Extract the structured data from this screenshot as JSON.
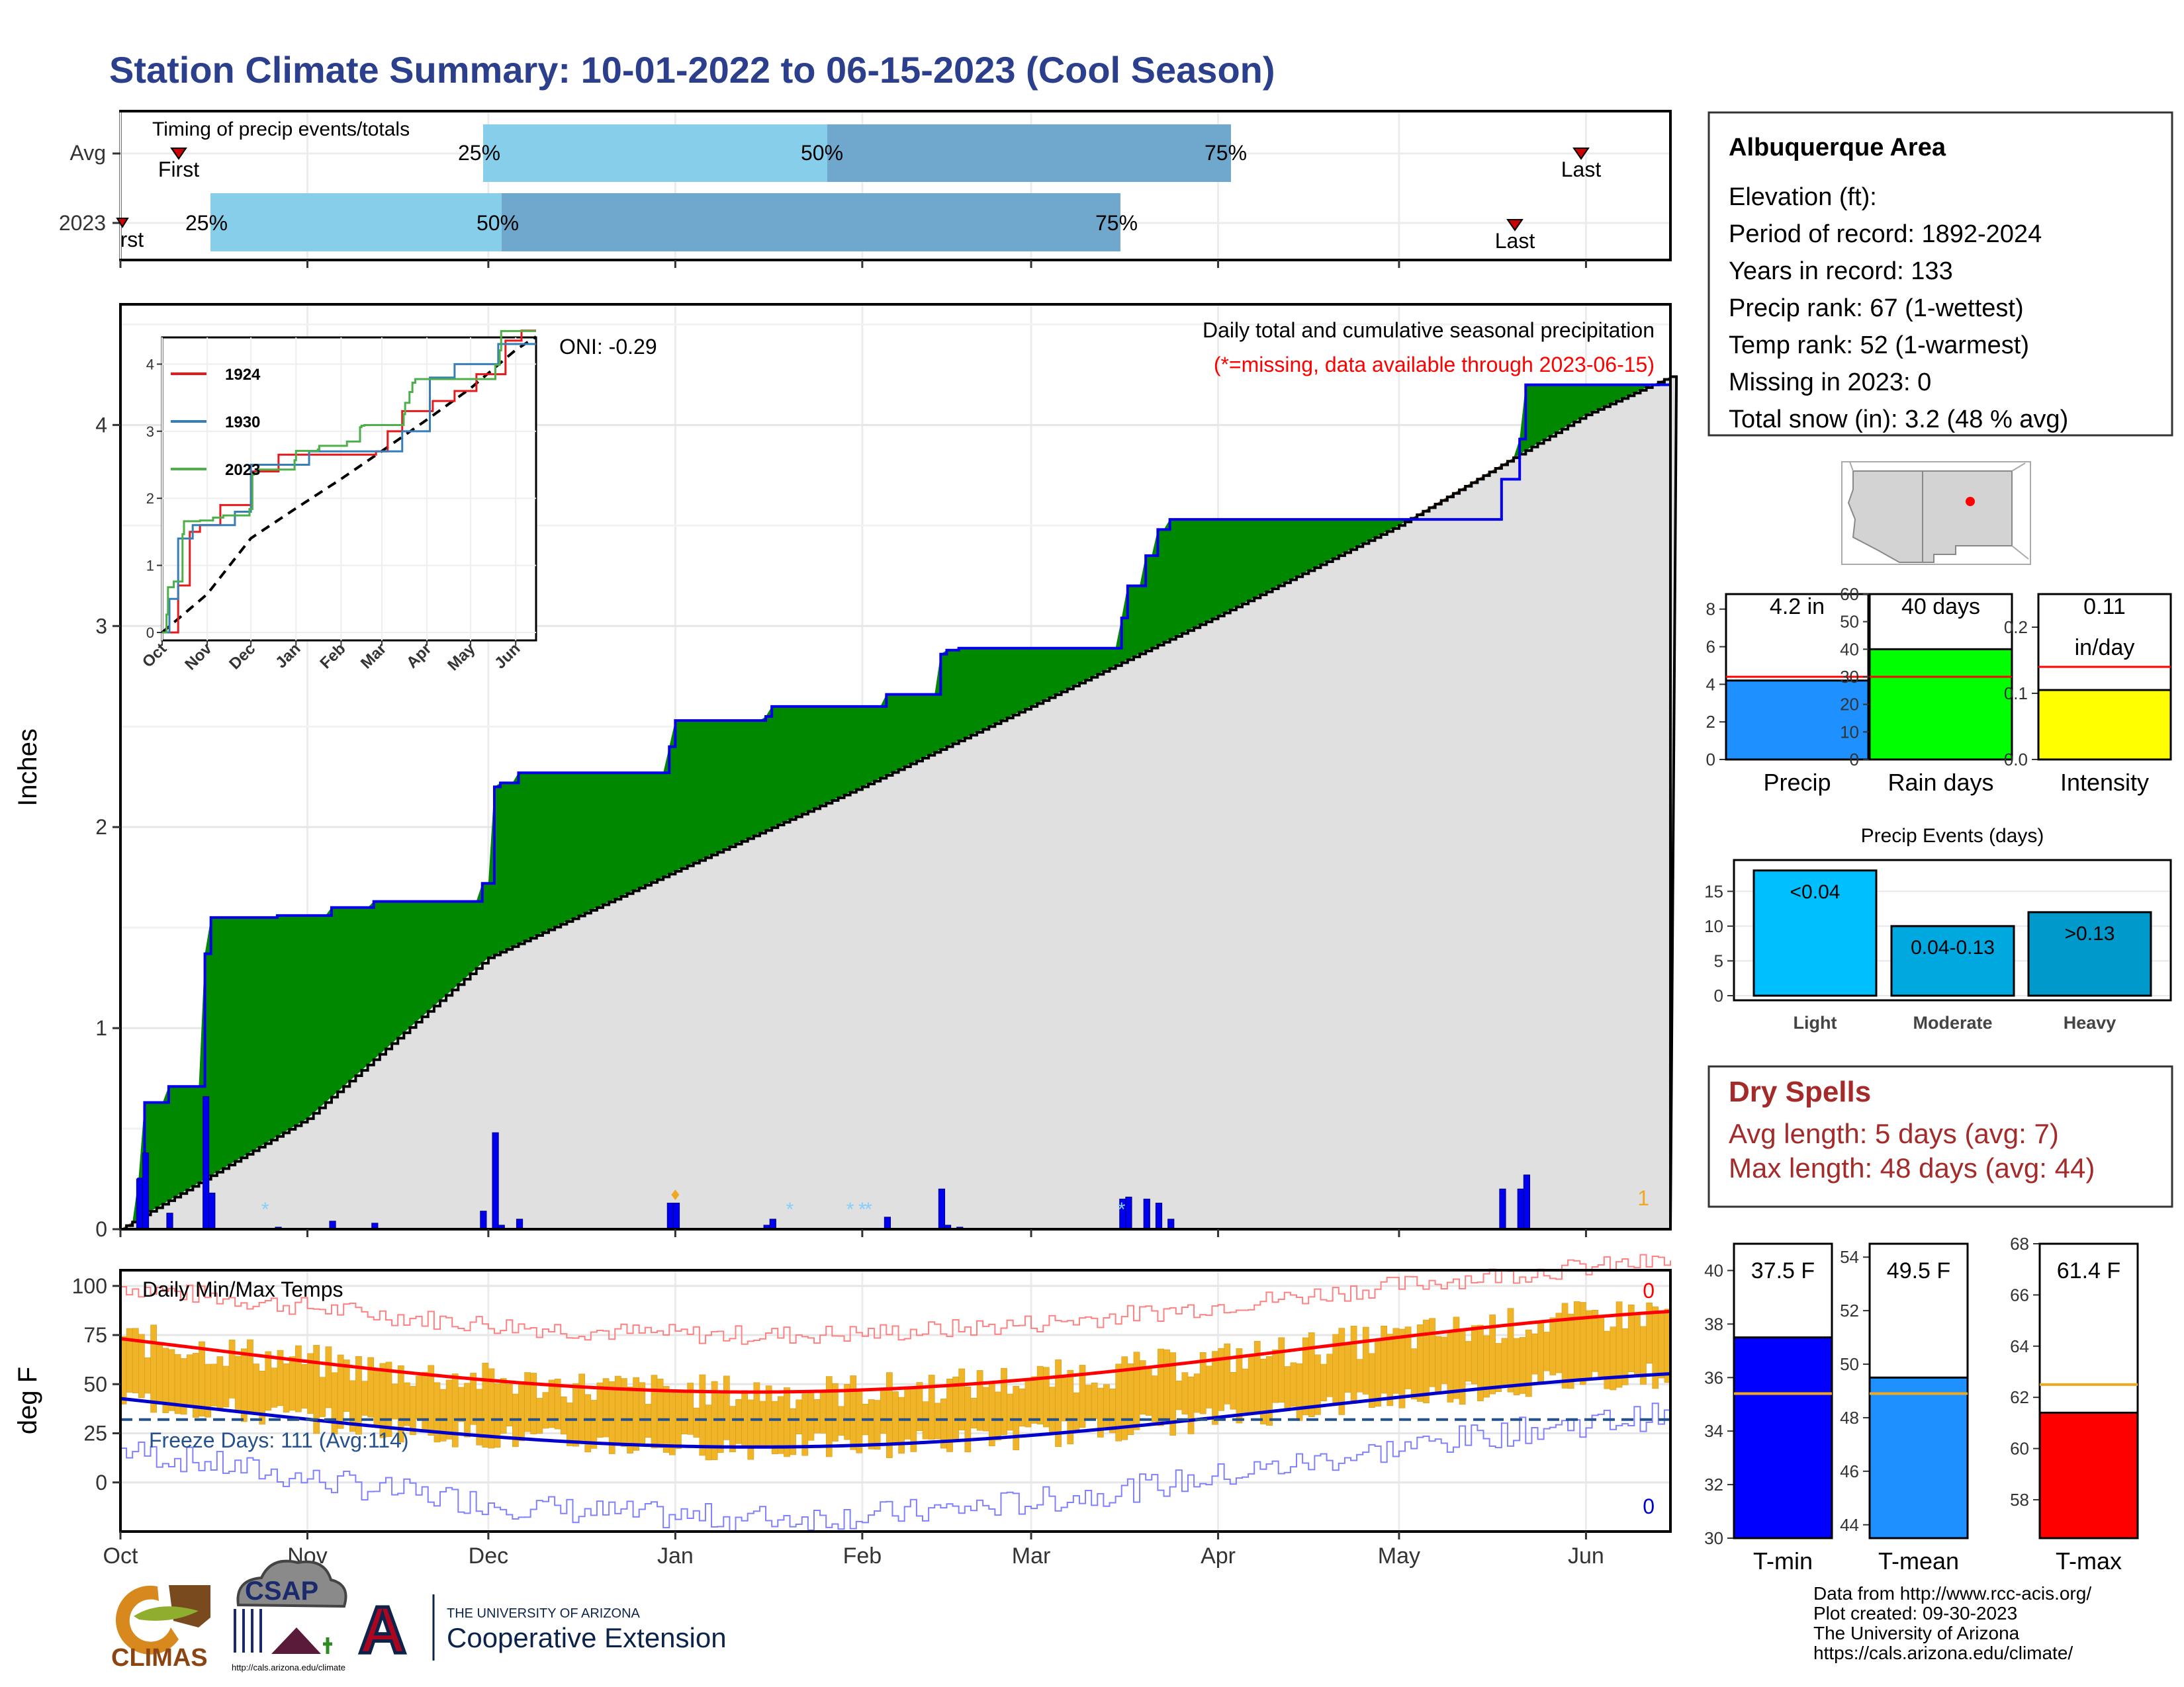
{
  "title": "Station Climate Summary: 10-01-2022 to 06-15-2023 (Cool Season)",
  "colors": {
    "title": "#2b3f8c",
    "q1": "#87ceeb",
    "q2": "#6fa8cc",
    "green": "#008800",
    "brown": "#8b5a12",
    "blue_line": "#0000ee",
    "gray_fill": "#e0e0e0",
    "orange": "#f0a820",
    "red": "#ff0000",
    "dryspell": "#a52a2a"
  },
  "timing": {
    "title": "Timing of precip events/totals",
    "rows": [
      {
        "label": "Avg",
        "first_label": "First",
        "last_label": "Last",
        "q25": "25%",
        "q50": "50%",
        "q75": "75%"
      },
      {
        "label": "2023",
        "first_label": "First",
        "last_label": "Last",
        "q25": "25%",
        "q50": "50%",
        "q75": "75%"
      }
    ]
  },
  "main": {
    "ylabel": "Inches",
    "header": "Daily total and cumulative seasonal precipitation",
    "missing_note": "(*=missing, data available through 2023-06-15)",
    "oni": "ONI: -0.29",
    "count_label": "1",
    "x_ticks": [
      "Oct",
      "Nov",
      "Dec",
      "Jan",
      "Feb",
      "Mar",
      "Apr",
      "May",
      "Jun"
    ],
    "y_ticks": [
      "0",
      "1",
      "2",
      "3",
      "4"
    ]
  },
  "inset": {
    "x_ticks": [
      "Oct",
      "Nov",
      "Dec",
      "Jan",
      "Feb",
      "Mar",
      "Apr",
      "May",
      "Jun"
    ],
    "y_ticks": [
      "0",
      "1",
      "2",
      "3",
      "4"
    ],
    "legend": [
      "1924",
      "1930",
      "2023"
    ]
  },
  "temps": {
    "title": "Daily Min/Max Temps",
    "ylabel": "deg F",
    "freeze": "Freeze Days: 111 (Avg:114)",
    "count_top": "0",
    "count_bottom": "0",
    "y_ticks": [
      "100",
      "75",
      "50",
      "25",
      "0"
    ],
    "x_ticks": [
      "Oct",
      "Nov",
      "Dec",
      "Jan",
      "Feb",
      "Mar",
      "Apr",
      "May",
      "Jun"
    ]
  },
  "info": {
    "station": "Albuquerque Area",
    "lines": [
      "Elevation (ft):",
      "Period of record: 1892-2024",
      "Years in record: 133",
      "Precip rank: 67 (1-wettest)",
      "Temp rank: 52 (1-warmest)",
      "Missing in 2023: 0",
      "Total snow (in): 3.2 (48 % avg)"
    ]
  },
  "mini_bars": [
    {
      "label": "Precip",
      "value_text": "4.2 in",
      "value": 4.2,
      "avg": 4.4,
      "ymax": 8.8,
      "ticks": [
        "0",
        "2",
        "4",
        "6",
        "8"
      ],
      "color": "#1e90ff"
    },
    {
      "label": "Rain days",
      "value_text": "40 days",
      "value": 40,
      "avg": 30,
      "ymax": 60,
      "ticks": [
        "0",
        "10",
        "20",
        "30",
        "40",
        "50",
        "60"
      ],
      "color": "#00ff00"
    },
    {
      "label": "Intensity",
      "value_text": "0.11",
      "value_text2": "in/day",
      "value": 0.105,
      "avg": 0.14,
      "ymax": 0.25,
      "ticks": [
        "0.0",
        "0.1",
        "0.2"
      ],
      "color": "#ffff00"
    }
  ],
  "precip_events": {
    "title": "Precip Events (days)",
    "categories": [
      "Light",
      "Moderate",
      "Heavy"
    ],
    "bar_labels": [
      "<0.04",
      "0.04-0.13",
      ">0.13"
    ],
    "values": [
      18,
      10,
      12
    ],
    "ticks": [
      "0",
      "5",
      "10",
      "15"
    ],
    "colors": [
      "#00bfff",
      "#00a8e0",
      "#0099cc"
    ]
  },
  "dry_spells": {
    "title": "Dry Spells",
    "avg": "Avg length: 5 days (avg: 7)",
    "max": "Max length: 48 days (avg: 44)"
  },
  "temp_bars": [
    {
      "label": "T-min",
      "value_text": "37.5 F",
      "value": 37.5,
      "avg": 35.4,
      "ymin": 30,
      "ymax": 41,
      "ticks": [
        "30",
        "32",
        "34",
        "36",
        "38",
        "40"
      ],
      "color": "#0000ff"
    },
    {
      "label": "T-mean",
      "value_text": "49.5 F",
      "value": 49.5,
      "avg": 48.9,
      "ymin": 43.5,
      "ymax": 54.5,
      "ticks": [
        "44",
        "46",
        "48",
        "50",
        "52",
        "54"
      ],
      "color": "#1e90ff"
    },
    {
      "label": "T-max",
      "value_text": "61.4 F",
      "value": 61.4,
      "avg": 62.5,
      "ymin": 56.5,
      "ymax": 68,
      "ticks": [
        "58",
        "60",
        "62",
        "64",
        "66",
        "68"
      ],
      "color": "#ff0000"
    }
  ],
  "footer": {
    "lines": [
      "Data from http://www.rcc-acis.org/",
      "Plot created: 09-30-2023",
      "The University of Arizona",
      "https://cals.arizona.edu/climate/"
    ],
    "climas": "CLIMAS",
    "csap": "CSAP",
    "csap_url": "http://cals.arizona.edu/climate",
    "ua_line1": "THE UNIVERSITY OF ARIZONA",
    "ua_line2": "Cooperative Extension",
    "ua_letter": "A"
  },
  "chart_data": {
    "type": "area",
    "title": "Station Climate Summary: 10-01-2022 to 06-15-2023 (Cool Season)",
    "ylabel": "Inches",
    "ylim": [
      0,
      4.6
    ],
    "x_range": [
      "2022-10-01",
      "2023-06-15"
    ],
    "series": [
      {
        "name": "2023",
        "x": [
          "2022-10-01",
          "2022-10-04",
          "2022-10-05",
          "2022-10-09",
          "2022-10-15",
          "2022-10-16",
          "2022-10-17",
          "2022-10-27",
          "2022-11-05",
          "2022-11-12",
          "2022-11-30",
          "2022-12-02",
          "2022-12-03",
          "2022-12-06",
          "2022-12-31",
          "2023-01-01",
          "2023-01-16",
          "2023-01-17",
          "2023-02-05",
          "2023-02-14",
          "2023-02-15",
          "2023-02-17",
          "2023-03-16",
          "2023-03-17",
          "2023-03-20",
          "2023-03-22",
          "2023-03-24",
          "2023-05-17",
          "2023-05-18",
          "2023-05-21",
          "2023-05-22",
          "2023-06-15"
        ],
        "values": [
          0.0,
          0.25,
          0.63,
          0.71,
          1.37,
          1.55,
          1.55,
          1.56,
          1.6,
          1.63,
          1.72,
          2.2,
          2.22,
          2.27,
          2.4,
          2.53,
          2.55,
          2.6,
          2.66,
          2.86,
          2.88,
          2.89,
          3.04,
          3.2,
          3.35,
          3.48,
          3.53,
          3.53,
          3.73,
          3.93,
          4.2,
          4.2
        ]
      },
      {
        "name": "",
        "x": [
          "2022-10-01",
          "2022-11-01",
          "2022-12-01",
          "2023-01-01",
          "2023-02-01",
          "2023-03-01",
          "2023-04-01",
          "2023-05-01",
          "2023-06-01",
          "2023-06-15"
        ],
        "values": [
          0.0,
          0.55,
          1.35,
          1.78,
          2.2,
          2.6,
          3.05,
          3.5,
          4.05,
          4.24
        ]
      }
    ]
  }
}
